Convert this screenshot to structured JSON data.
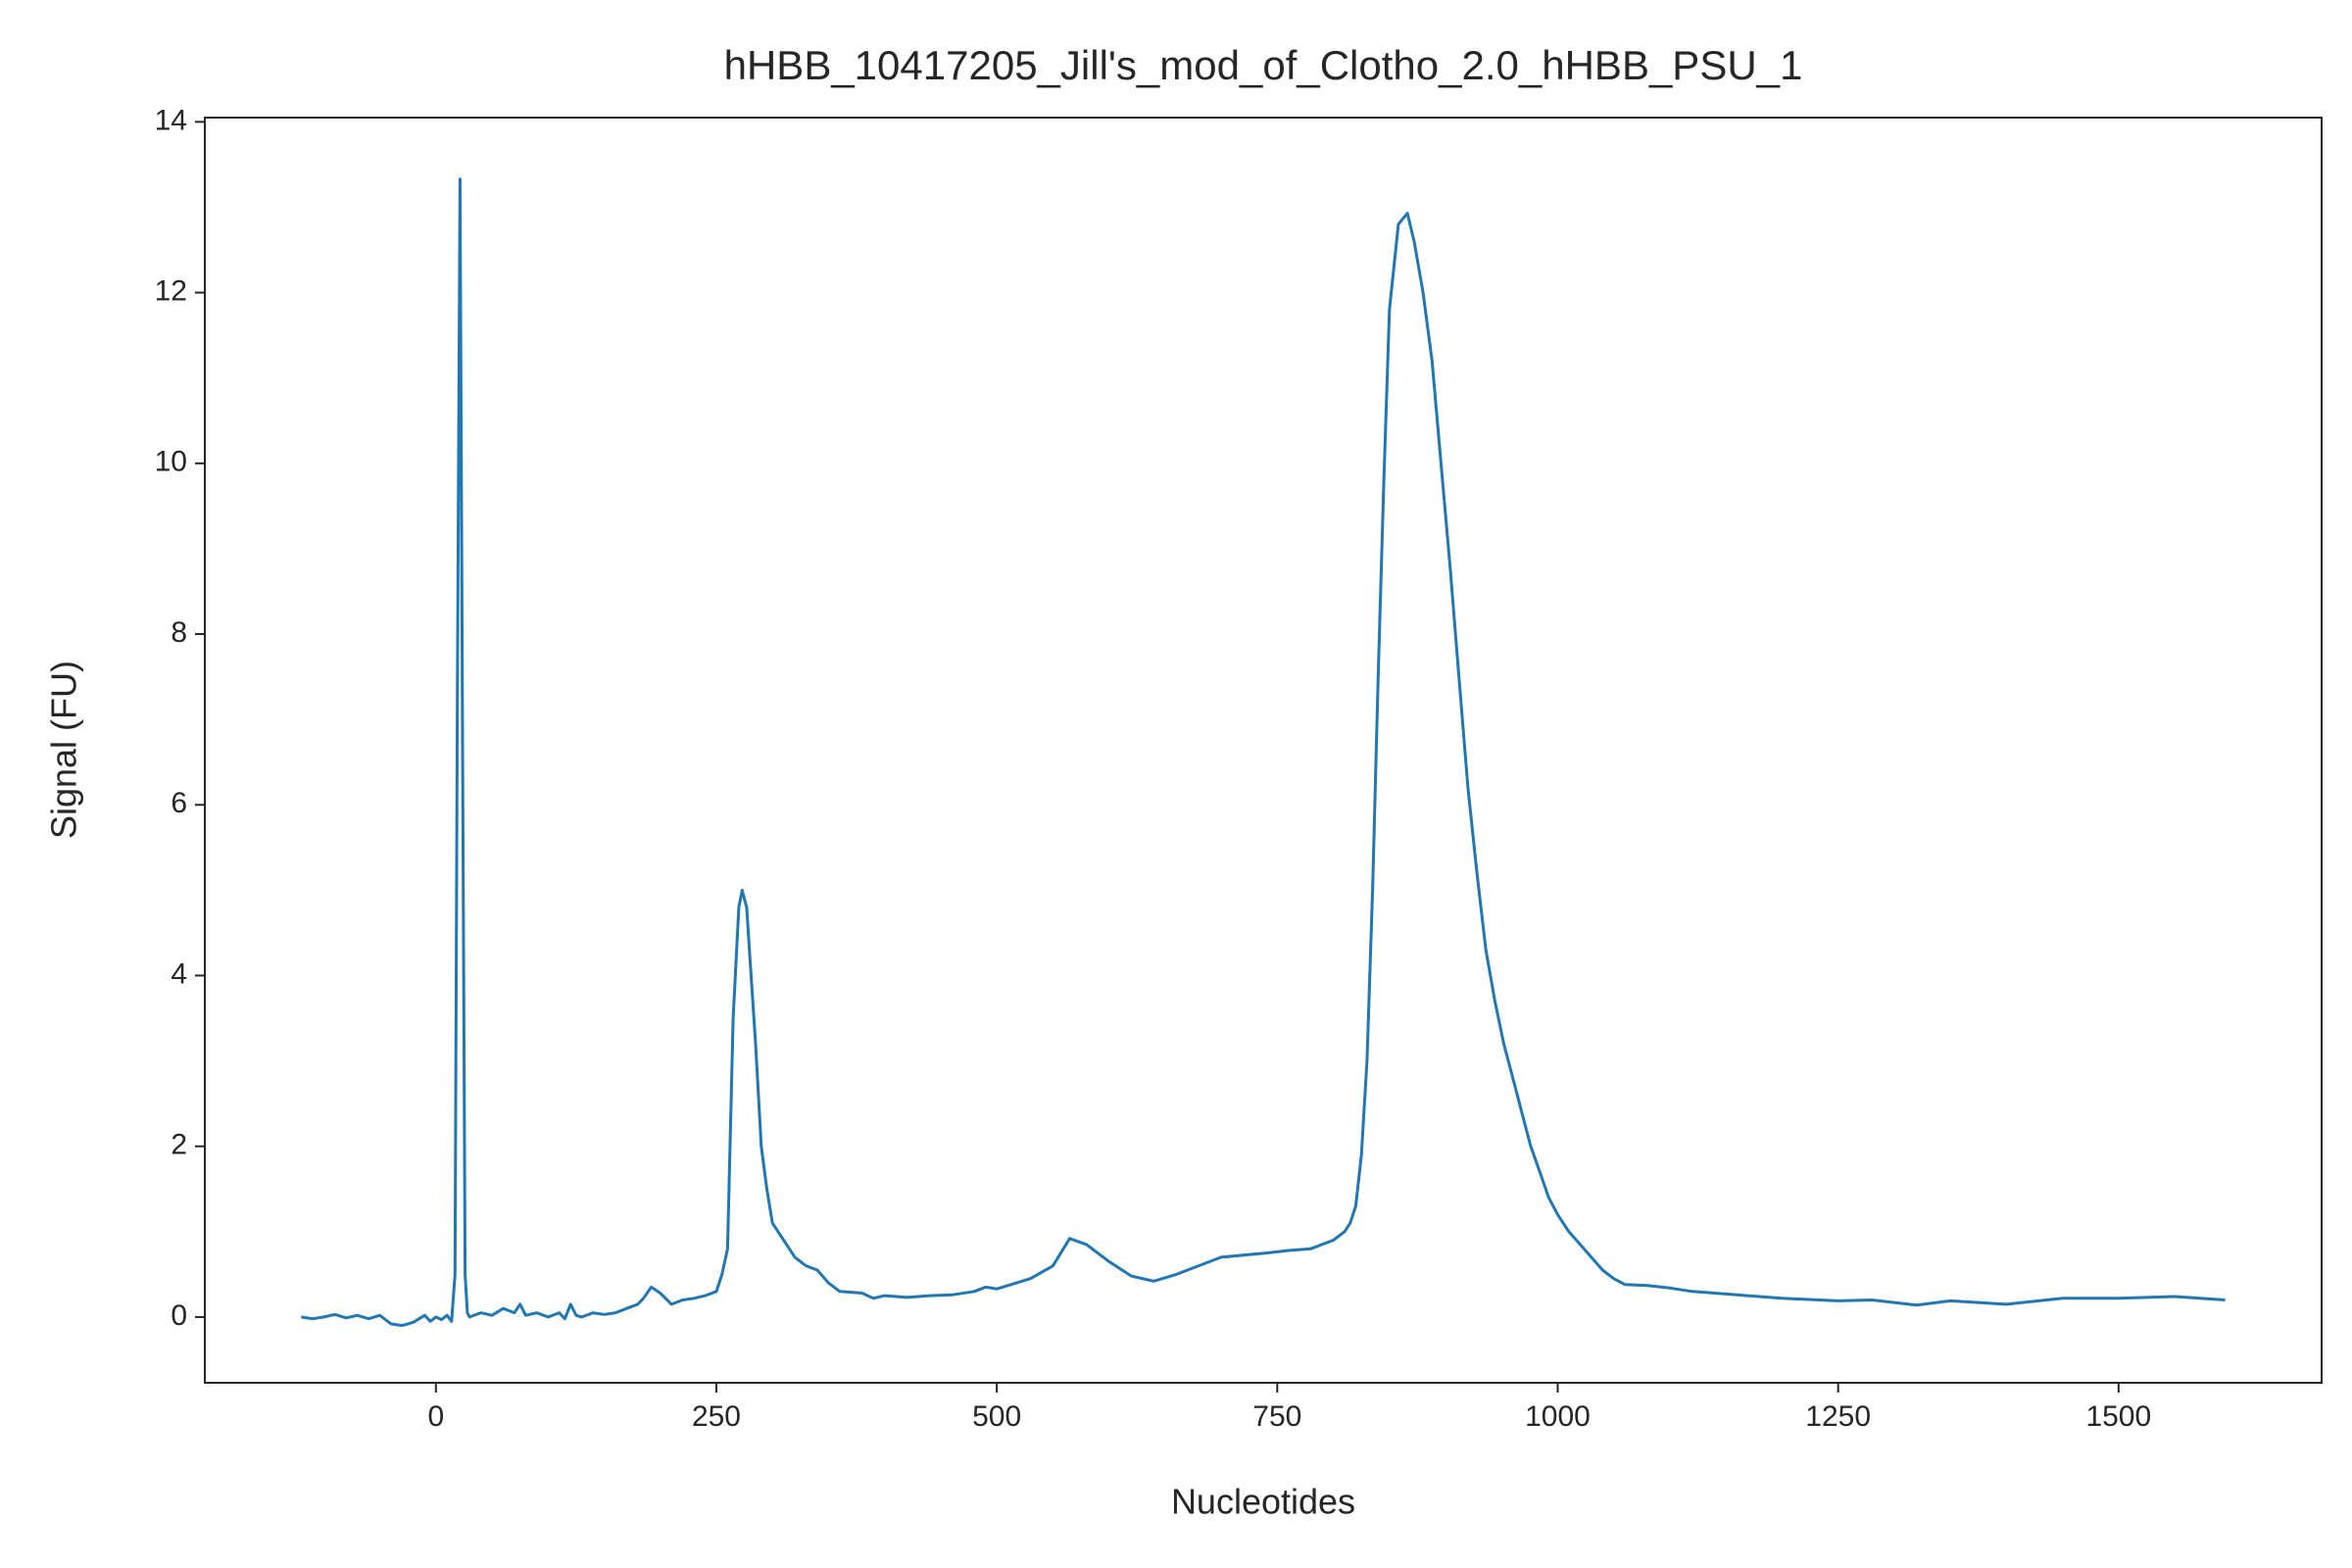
{
  "chart_data": {
    "type": "line",
    "title": "hHBB_10417205_Jill's_mod_of_Clotho_2.0_hHBB_PSU_1",
    "x_label": "Nucleotides",
    "y_label": "Signal (FU)",
    "color": "#1f77b4",
    "x": [
      -120,
      -110,
      -100,
      -90,
      -80,
      -70,
      -60,
      -50,
      -40,
      -30,
      -25,
      -20,
      -10,
      -5,
      0,
      5,
      10,
      14,
      17,
      19,
      21.5,
      24,
      26,
      28,
      30,
      40,
      50,
      60,
      70,
      75,
      80,
      90,
      100,
      110,
      115,
      120,
      125,
      130,
      140,
      150,
      160,
      170,
      180,
      185,
      192,
      200,
      210,
      220,
      230,
      240,
      250,
      255,
      260,
      265,
      270,
      273,
      277,
      280,
      285,
      290,
      295,
      300,
      310,
      320,
      330,
      340,
      350,
      360,
      380,
      390,
      400,
      420,
      440,
      460,
      480,
      490,
      500,
      530,
      550,
      565,
      580,
      600,
      620,
      640,
      660,
      700,
      740,
      760,
      780,
      800,
      810,
      815,
      820,
      825,
      830,
      835,
      840,
      845,
      850,
      858,
      866,
      872,
      880,
      888,
      896,
      904,
      912,
      920,
      928,
      936,
      944,
      952,
      960,
      968,
      976,
      984,
      992,
      1000,
      1010,
      1020,
      1030,
      1040,
      1050,
      1060,
      1080,
      1100,
      1120,
      1150,
      1200,
      1250,
      1280,
      1300,
      1320,
      1350,
      1400,
      1450,
      1500,
      1550,
      1595
    ],
    "values": [
      0,
      -0.02,
      0,
      0.03,
      -0.01,
      0.02,
      -0.02,
      0.02,
      -0.08,
      -0.1,
      -0.08,
      -0.06,
      0.02,
      -0.05,
      0,
      -0.03,
      0.02,
      -0.05,
      0.5,
      7.0,
      13.33,
      6.0,
      0.5,
      0.05,
      0,
      0.05,
      0.02,
      0.1,
      0.05,
      0.15,
      0.02,
      0.05,
      0,
      0.05,
      -0.02,
      0.15,
      0.02,
      0,
      0.05,
      0.03,
      0.05,
      0.1,
      0.15,
      0.22,
      0.35,
      0.28,
      0.15,
      0.2,
      0.22,
      0.25,
      0.3,
      0.5,
      0.8,
      3.5,
      4.8,
      5.0,
      4.8,
      4.2,
      3.2,
      2.0,
      1.5,
      1.1,
      0.9,
      0.7,
      0.6,
      0.55,
      0.4,
      0.3,
      0.28,
      0.22,
      0.25,
      0.23,
      0.25,
      0.26,
      0.3,
      0.35,
      0.33,
      0.45,
      0.6,
      0.92,
      0.85,
      0.65,
      0.48,
      0.42,
      0.5,
      0.7,
      0.75,
      0.78,
      0.8,
      0.9,
      1.0,
      1.1,
      1.3,
      1.9,
      3.0,
      5.0,
      7.5,
      9.8,
      11.8,
      12.8,
      12.93,
      12.6,
      12.0,
      11.2,
      10.0,
      8.8,
      7.5,
      6.2,
      5.2,
      4.3,
      3.7,
      3.2,
      2.8,
      2.4,
      2.0,
      1.7,
      1.4,
      1.2,
      1.0,
      0.85,
      0.7,
      0.55,
      0.45,
      0.38,
      0.37,
      0.34,
      0.3,
      0.27,
      0.22,
      0.19,
      0.2,
      0.17,
      0.14,
      0.19,
      0.15,
      0.22,
      0.22,
      0.24,
      0.2
    ],
    "xlim": [
      -206,
      1681
    ],
    "ylim": [
      -0.77,
      14.05
    ],
    "xticks": [
      0,
      250,
      500,
      750,
      1000,
      1250,
      1500
    ],
    "yticks": [
      0,
      2,
      4,
      6,
      8,
      10,
      12,
      14
    ]
  }
}
